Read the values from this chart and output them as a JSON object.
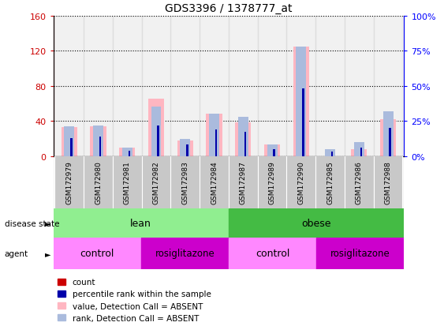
{
  "title": "GDS3396 / 1378777_at",
  "samples": [
    "GSM172979",
    "GSM172980",
    "GSM172981",
    "GSM172982",
    "GSM172983",
    "GSM172984",
    "GSM172987",
    "GSM172989",
    "GSM172990",
    "GSM172985",
    "GSM172986",
    "GSM172988"
  ],
  "value_absent": [
    33,
    34,
    10,
    65,
    18,
    48,
    38,
    13,
    125,
    0,
    8,
    42
  ],
  "rank_absent": [
    21,
    22,
    6,
    35,
    12,
    30,
    28,
    8,
    78,
    5,
    10,
    32
  ],
  "count": [
    2,
    2,
    1,
    2,
    1,
    2,
    2,
    1,
    2,
    0,
    1,
    2
  ],
  "percentile": [
    13,
    14,
    4,
    22,
    8,
    19,
    17,
    5,
    48,
    3,
    6,
    20
  ],
  "ylim_left": [
    0,
    160
  ],
  "ylim_right": [
    0,
    100
  ],
  "yticks_left": [
    0,
    40,
    80,
    120,
    160
  ],
  "yticks_right": [
    0,
    25,
    50,
    75,
    100
  ],
  "ytick_labels_left": [
    "0",
    "40",
    "80",
    "120",
    "160"
  ],
  "ytick_labels_right": [
    "0%",
    "25%",
    "50%",
    "75%",
    "100%"
  ],
  "color_value_absent": "#FFB6C1",
  "color_rank_absent": "#AABBDD",
  "color_count": "#CC0000",
  "color_percentile": "#0000AA",
  "color_lean": "#90EE90",
  "color_obese": "#44BB44",
  "color_control": "#FF88FF",
  "color_rosiglitazone": "#CC00CC",
  "color_sample_bg": "#C8C8C8",
  "legend_items": [
    "count",
    "percentile rank within the sample",
    "value, Detection Call = ABSENT",
    "rank, Detection Call = ABSENT"
  ],
  "legend_colors": [
    "#CC0000",
    "#0000AA",
    "#FFB6C1",
    "#AABBDD"
  ]
}
